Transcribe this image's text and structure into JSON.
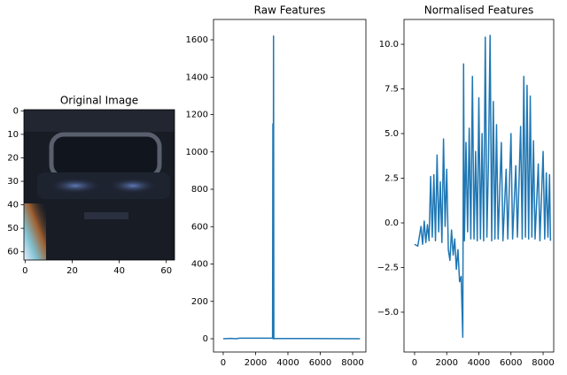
{
  "chart_data": [
    {
      "type": "image",
      "title": "Original Image",
      "xlim": [
        -0.5,
        63.5
      ],
      "ylim": [
        63.5,
        -0.5
      ],
      "xticks": [
        0,
        20,
        40,
        60
      ],
      "yticks": [
        0,
        10,
        20,
        30,
        40,
        50,
        60
      ]
    },
    {
      "type": "line",
      "title": "Raw Features",
      "color": "#1f77b4",
      "x": [
        0,
        500,
        800,
        1000,
        3050,
        3070,
        3090,
        3110,
        3130,
        3160,
        5000,
        8459
      ],
      "values": [
        0,
        2,
        0,
        3,
        3,
        1150,
        0,
        1620,
        0,
        2,
        1,
        0
      ],
      "xlim": [
        -600,
        8820
      ],
      "ylim": [
        -71,
        1709
      ],
      "xticks": [
        0,
        2000,
        4000,
        6000,
        8000
      ],
      "yticks": [
        0,
        200,
        400,
        600,
        800,
        1000,
        1200,
        1400,
        1600
      ]
    },
    {
      "type": "line",
      "title": "Normalised Features",
      "color": "#1f77b4",
      "x": [
        0,
        200,
        400,
        500,
        600,
        700,
        800,
        900,
        1000,
        1100,
        1200,
        1300,
        1400,
        1500,
        1600,
        1700,
        1800,
        1900,
        2000,
        2100,
        2200,
        2300,
        2400,
        2500,
        2600,
        2700,
        2800,
        2900,
        3000,
        3050,
        3100,
        3200,
        3300,
        3400,
        3500,
        3600,
        3700,
        3800,
        3900,
        4000,
        4100,
        4200,
        4300,
        4400,
        4500,
        4600,
        4700,
        4800,
        4900,
        5000,
        5100,
        5200,
        5400,
        5500,
        5700,
        5800,
        6000,
        6100,
        6300,
        6400,
        6600,
        6700,
        6800,
        6900,
        7000,
        7100,
        7200,
        7300,
        7400,
        7500,
        7700,
        7800,
        8000,
        8100,
        8200,
        8300,
        8400,
        8459
      ],
      "values": [
        -1.2,
        -1.3,
        -0.2,
        -1.2,
        0.1,
        -1.1,
        -0.1,
        -1.0,
        2.6,
        -0.8,
        2.7,
        -1.0,
        3.8,
        -0.5,
        2.3,
        -1.1,
        4.7,
        -0.2,
        3.0,
        -1.5,
        -2.1,
        -0.4,
        -1.8,
        -0.9,
        -2.6,
        -1.5,
        -3.3,
        -3.0,
        -6.4,
        8.9,
        -1.0,
        4.5,
        -0.5,
        5.3,
        -0.9,
        8.2,
        -0.9,
        4.0,
        -1.0,
        7.0,
        -0.9,
        5.0,
        -1.0,
        10.4,
        -0.8,
        3.5,
        10.5,
        -1.0,
        6.8,
        -0.9,
        5.5,
        -0.9,
        4.5,
        -1.0,
        3.0,
        -0.9,
        5.0,
        -0.9,
        3.2,
        -0.8,
        5.4,
        -0.9,
        8.2,
        -0.8,
        7.7,
        -0.9,
        7.1,
        -0.8,
        4.6,
        -0.9,
        3.3,
        -1.0,
        4.0,
        -0.9,
        2.8,
        -0.8,
        2.7,
        -1.0
      ],
      "xlim": [
        -660,
        8660
      ],
      "ylim": [
        -7.23,
        11.39
      ],
      "xticks": [
        0,
        2000,
        4000,
        6000,
        8000
      ],
      "yticks": [
        {
          "value": -5,
          "label": "−5.0"
        },
        {
          "value": -2.5,
          "label": "−2.5"
        },
        {
          "value": 0,
          "label": "0.0"
        },
        {
          "value": 2.5,
          "label": "2.5"
        },
        {
          "value": 5,
          "label": "5.0"
        },
        {
          "value": 7.5,
          "label": "7.5"
        },
        {
          "value": 10,
          "label": "10.0"
        }
      ]
    }
  ]
}
